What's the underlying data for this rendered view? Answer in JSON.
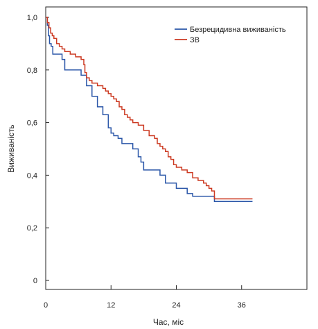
{
  "chart_data": {
    "type": "line",
    "xlabel": "Час, міс",
    "ylabel": "Виживаність",
    "xlim": [
      0,
      48
    ],
    "ylim": [
      0,
      1.05
    ],
    "x_ticks": [
      0,
      12,
      24,
      36
    ],
    "y_ticks": [
      0,
      0.2,
      0.4,
      0.6,
      0.8,
      1.0
    ],
    "x_tick_labels": [
      "0",
      "12",
      "24",
      "36"
    ],
    "y_tick_labels": [
      "0",
      "0,2",
      "0,4",
      "0,6",
      "0,8",
      "1,0"
    ],
    "grid": false,
    "legend_position": "top-right",
    "series": [
      {
        "name": "Безрецидивна виживаність",
        "color": "#2a56a8",
        "step": true,
        "x": [
          0,
          0.3,
          0.5,
          0.7,
          1.0,
          1.3,
          3,
          3.5,
          6.5,
          7.5,
          8.5,
          9.5,
          10.5,
          11.5,
          12.0,
          12.5,
          13.3,
          14,
          16,
          17,
          17.5,
          18,
          21,
          22,
          24,
          26,
          27,
          31,
          38
        ],
        "y": [
          1.0,
          0.97,
          0.93,
          0.9,
          0.89,
          0.86,
          0.84,
          0.8,
          0.78,
          0.74,
          0.7,
          0.66,
          0.63,
          0.58,
          0.56,
          0.55,
          0.54,
          0.52,
          0.5,
          0.47,
          0.45,
          0.42,
          0.4,
          0.37,
          0.35,
          0.33,
          0.32,
          0.3,
          0.3
        ]
      },
      {
        "name": "ЗВ",
        "color": "#cc3a22",
        "step": true,
        "x": [
          0,
          0.3,
          0.6,
          0.9,
          1.2,
          1.5,
          2.0,
          2.5,
          3.0,
          3.5,
          4.5,
          5.5,
          6.5,
          7.0,
          7.2,
          7.5,
          8.0,
          8.5,
          9.5,
          10.5,
          11.0,
          11.5,
          12.0,
          12.5,
          13.0,
          13.5,
          14.0,
          14.5,
          15.0,
          15.5,
          16.0,
          17.0,
          18.0,
          19.0,
          20.0,
          20.5,
          21.0,
          21.5,
          22.0,
          22.5,
          23.0,
          23.5,
          24.0,
          25.0,
          26.0,
          27.0,
          28.0,
          29.0,
          29.5,
          30.0,
          30.5,
          31.0,
          38.0
        ],
        "y": [
          1.0,
          0.98,
          0.96,
          0.94,
          0.93,
          0.92,
          0.9,
          0.89,
          0.88,
          0.87,
          0.86,
          0.85,
          0.84,
          0.82,
          0.79,
          0.77,
          0.76,
          0.75,
          0.74,
          0.73,
          0.72,
          0.71,
          0.7,
          0.69,
          0.68,
          0.66,
          0.65,
          0.63,
          0.62,
          0.61,
          0.6,
          0.59,
          0.57,
          0.55,
          0.54,
          0.52,
          0.51,
          0.5,
          0.49,
          0.47,
          0.46,
          0.44,
          0.43,
          0.42,
          0.41,
          0.39,
          0.38,
          0.37,
          0.36,
          0.35,
          0.34,
          0.31,
          0.31
        ]
      }
    ]
  }
}
